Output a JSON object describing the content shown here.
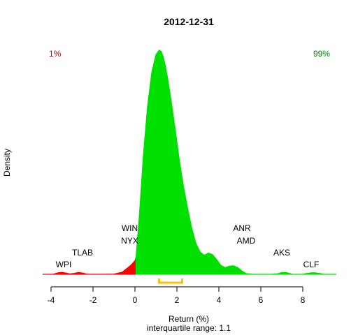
{
  "chart_data": {
    "type": "area",
    "title": "2012-12-31",
    "xlabel": "Return (%)",
    "subtitle": "interquartile range: 1.1",
    "ylabel": "Density",
    "xlim": [
      -4.4,
      9.6
    ],
    "ylim": [
      0,
      1.0
    ],
    "xticks": [
      -4,
      -2,
      0,
      2,
      4,
      6,
      8
    ],
    "grid": false,
    "tail_labels": {
      "left": "1%",
      "right": "99%"
    },
    "colors": {
      "tail": "#ff0000",
      "body": "#00e000",
      "iqr": "#ffc000",
      "left_label": "#cc0000",
      "right_label": "#008800",
      "baseline": "#bbbbbb"
    },
    "split_x": 0.05,
    "iqr": [
      1.15,
      2.25
    ],
    "density": {
      "x": [
        -4.4,
        -3.9,
        -3.7,
        -3.5,
        -3.3,
        -3.1,
        -2.9,
        -2.7,
        -2.5,
        -2.3,
        -2.1,
        -1.5,
        -1.0,
        -0.6,
        -0.4,
        -0.2,
        0.0,
        0.05,
        0.2,
        0.4,
        0.6,
        0.8,
        1.0,
        1.15,
        1.25,
        1.35,
        1.45,
        1.55,
        1.7,
        1.9,
        2.1,
        2.3,
        2.5,
        2.7,
        2.9,
        3.1,
        3.3,
        3.5,
        3.7,
        3.9,
        4.1,
        4.3,
        4.5,
        4.7,
        4.9,
        5.1,
        5.3,
        5.6,
        5.8,
        6.0,
        6.5,
        6.8,
        7.0,
        7.2,
        7.5,
        8.0,
        8.2,
        8.4,
        8.6,
        8.8,
        9.0,
        9.6
      ],
      "y": [
        0.0,
        0.0,
        0.006,
        0.009,
        0.006,
        0.002,
        0.004,
        0.008,
        0.006,
        0.001,
        0.0,
        0.0,
        0.001,
        0.01,
        0.025,
        0.04,
        0.06,
        0.075,
        0.25,
        0.53,
        0.75,
        0.9,
        0.98,
        1.0,
        0.995,
        0.97,
        0.93,
        0.88,
        0.79,
        0.66,
        0.52,
        0.4,
        0.3,
        0.21,
        0.14,
        0.1,
        0.085,
        0.095,
        0.088,
        0.065,
        0.04,
        0.03,
        0.036,
        0.038,
        0.03,
        0.015,
        0.003,
        0.0,
        0.0,
        0.0,
        0.0,
        0.002,
        0.008,
        0.008,
        0.0,
        0.0,
        0.004,
        0.007,
        0.007,
        0.004,
        0.0,
        0.0
      ]
    },
    "annotations": [
      {
        "label": "WPI",
        "x": -3.4
      },
      {
        "label": "TLAB",
        "x": -2.5
      },
      {
        "label": "WIN",
        "x": -0.25
      },
      {
        "label": "NYX",
        "x": -0.25
      },
      {
        "label": "ANR",
        "x": 5.1
      },
      {
        "label": "AMD",
        "x": 5.3
      },
      {
        "label": "AKS",
        "x": 7.0
      },
      {
        "label": "CLF",
        "x": 8.4
      }
    ]
  }
}
